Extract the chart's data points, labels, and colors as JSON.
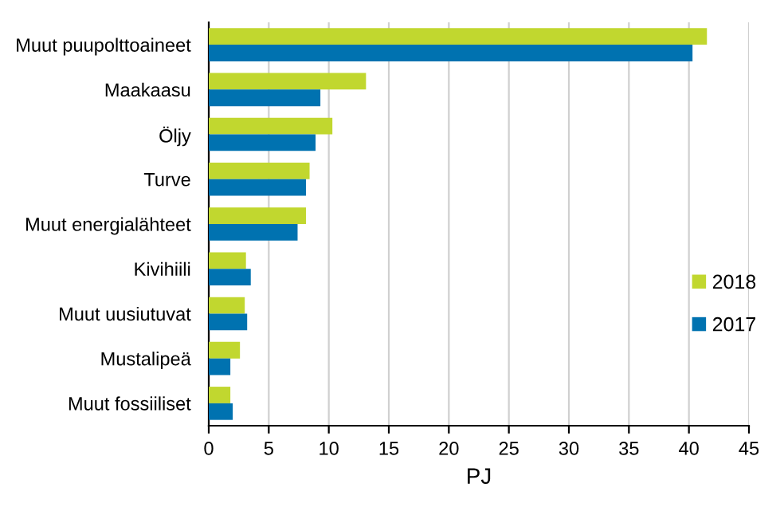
{
  "chart_data": {
    "type": "bar",
    "orientation": "horizontal",
    "xlabel": "PJ",
    "categories": [
      "Muut puupolttoaineet",
      "Maakaasu",
      "Öljy",
      "Turve",
      "Muut energialähteet",
      "Kivihiili",
      "Muut uusiutuvat",
      "Mustalipeä",
      "Muut fossiiliset"
    ],
    "series": [
      {
        "name": "2018",
        "color": "#c1d72f",
        "values": [
          41.5,
          13.1,
          10.3,
          8.4,
          8.1,
          3.1,
          3.0,
          2.6,
          1.8
        ]
      },
      {
        "name": "2017",
        "color": "#0072b0",
        "values": [
          40.3,
          9.3,
          8.9,
          8.1,
          7.4,
          3.5,
          3.2,
          1.8,
          2.0
        ]
      }
    ],
    "xlim": [
      0,
      45
    ],
    "xticks": [
      0,
      5,
      10,
      15,
      20,
      25,
      30,
      35,
      40,
      45
    ],
    "grid": "x",
    "legend": "right"
  }
}
